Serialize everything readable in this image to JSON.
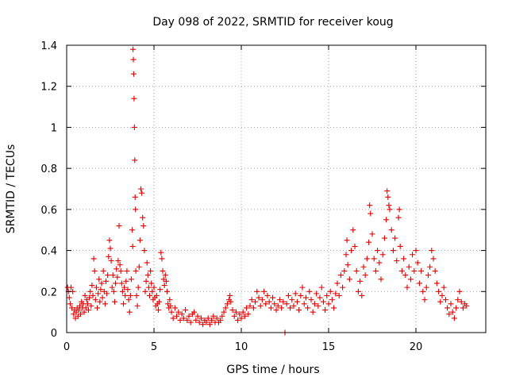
{
  "chart_data": {
    "type": "scatter",
    "title": "Day 098 of 2022, SRMTID for receiver koug",
    "xlabel": "GPS time / hours",
    "ylabel": "SRMTID / TECUs",
    "xlim": [
      0,
      24
    ],
    "ylim": [
      0,
      1.4
    ],
    "xticks": [
      0,
      5,
      10,
      15,
      20
    ],
    "xtick_labels": [
      "0",
      "5",
      "10",
      "15",
      "20"
    ],
    "yticks": [
      0,
      0.2,
      0.4,
      0.6,
      0.8,
      1,
      1.2,
      1.4
    ],
    "ytick_labels": [
      "0",
      "0.2",
      "0.4",
      "0.6",
      "0.8",
      "1",
      "1.2",
      "1.4"
    ],
    "grid": true,
    "marker": "plus",
    "series": [
      {
        "name": "SRMTID",
        "color": "#e00000",
        "points": [
          [
            0.05,
            0.22
          ],
          [
            0.1,
            0.2
          ],
          [
            0.15,
            0.17
          ],
          [
            0.2,
            0.14
          ],
          [
            0.25,
            0.22
          ],
          [
            0.3,
            0.12
          ],
          [
            0.35,
            0.2
          ],
          [
            0.4,
            0.09
          ],
          [
            0.45,
            0.11
          ],
          [
            0.5,
            0.07
          ],
          [
            0.55,
            0.1
          ],
          [
            0.6,
            0.12
          ],
          [
            0.65,
            0.08
          ],
          [
            0.7,
            0.11
          ],
          [
            0.75,
            0.13
          ],
          [
            0.8,
            0.09
          ],
          [
            0.85,
            0.15
          ],
          [
            0.9,
            0.12
          ],
          [
            0.95,
            0.14
          ],
          [
            1.0,
            0.1
          ],
          [
            1.05,
            0.18
          ],
          [
            1.1,
            0.12
          ],
          [
            1.15,
            0.16
          ],
          [
            1.2,
            0.14
          ],
          [
            1.25,
            0.11
          ],
          [
            1.3,
            0.17
          ],
          [
            1.35,
            0.2
          ],
          [
            1.4,
            0.13
          ],
          [
            1.45,
            0.23
          ],
          [
            1.5,
            0.18
          ],
          [
            1.55,
            0.36
          ],
          [
            1.6,
            0.3
          ],
          [
            1.65,
            0.16
          ],
          [
            1.7,
            0.22
          ],
          [
            1.75,
            0.12
          ],
          [
            1.8,
            0.19
          ],
          [
            1.85,
            0.26
          ],
          [
            1.9,
            0.15
          ],
          [
            1.95,
            0.21
          ],
          [
            2.0,
            0.24
          ],
          [
            2.05,
            0.17
          ],
          [
            2.1,
            0.3
          ],
          [
            2.15,
            0.2
          ],
          [
            2.2,
            0.14
          ],
          [
            2.25,
            0.25
          ],
          [
            2.3,
            0.19
          ],
          [
            2.35,
            0.28
          ],
          [
            2.4,
            0.37
          ],
          [
            2.45,
            0.45
          ],
          [
            2.5,
            0.41
          ],
          [
            2.55,
            0.35
          ],
          [
            2.6,
            0.22
          ],
          [
            2.65,
            0.28
          ],
          [
            2.7,
            0.2
          ],
          [
            2.75,
            0.15
          ],
          [
            2.8,
            0.24
          ],
          [
            2.85,
            0.31
          ],
          [
            2.9,
            0.27
          ],
          [
            2.95,
            0.35
          ],
          [
            3.0,
            0.52
          ],
          [
            3.05,
            0.33
          ],
          [
            3.1,
            0.3
          ],
          [
            3.15,
            0.24
          ],
          [
            3.2,
            0.2
          ],
          [
            3.25,
            0.14
          ],
          [
            3.3,
            0.22
          ],
          [
            3.35,
            0.18
          ],
          [
            3.4,
            0.25
          ],
          [
            3.45,
            0.3
          ],
          [
            3.5,
            0.21
          ],
          [
            3.55,
            0.16
          ],
          [
            3.6,
            0.1
          ],
          [
            3.65,
            0.18
          ],
          [
            3.7,
            0.26
          ],
          [
            3.75,
            0.5
          ],
          [
            3.78,
            0.42
          ],
          [
            3.8,
            1.38
          ],
          [
            3.82,
            1.33
          ],
          [
            3.84,
            1.26
          ],
          [
            3.86,
            1.14
          ],
          [
            3.88,
            1.0
          ],
          [
            3.9,
            0.84
          ],
          [
            3.92,
            0.66
          ],
          [
            3.94,
            0.6
          ],
          [
            3.96,
            0.3
          ],
          [
            4.0,
            0.18
          ],
          [
            4.05,
            0.13
          ],
          [
            4.1,
            0.22
          ],
          [
            4.15,
            0.32
          ],
          [
            4.2,
            0.45
          ],
          [
            4.25,
            0.7
          ],
          [
            4.3,
            0.68
          ],
          [
            4.35,
            0.56
          ],
          [
            4.4,
            0.52
          ],
          [
            4.45,
            0.4
          ],
          [
            4.5,
            0.2
          ],
          [
            4.55,
            0.25
          ],
          [
            4.6,
            0.34
          ],
          [
            4.65,
            0.28
          ],
          [
            4.7,
            0.22
          ],
          [
            4.75,
            0.18
          ],
          [
            4.8,
            0.3
          ],
          [
            4.85,
            0.24
          ],
          [
            4.9,
            0.2
          ],
          [
            4.95,
            0.16
          ],
          [
            5.0,
            0.22
          ],
          [
            5.05,
            0.17
          ],
          [
            5.1,
            0.13
          ],
          [
            5.15,
            0.18
          ],
          [
            5.2,
            0.14
          ],
          [
            5.25,
            0.11
          ],
          [
            5.3,
            0.15
          ],
          [
            5.35,
            0.21
          ],
          [
            5.4,
            0.39
          ],
          [
            5.45,
            0.36
          ],
          [
            5.5,
            0.3
          ],
          [
            5.55,
            0.26
          ],
          [
            5.6,
            0.23
          ],
          [
            5.65,
            0.28
          ],
          [
            5.7,
            0.25
          ],
          [
            5.75,
            0.2
          ],
          [
            5.8,
            0.14
          ],
          [
            5.85,
            0.12
          ],
          [
            5.9,
            0.16
          ],
          [
            5.95,
            0.13
          ],
          [
            6.0,
            0.1
          ],
          [
            6.1,
            0.07
          ],
          [
            6.2,
            0.12
          ],
          [
            6.3,
            0.08
          ],
          [
            6.4,
            0.1
          ],
          [
            6.5,
            0.06
          ],
          [
            6.6,
            0.09
          ],
          [
            6.7,
            0.07
          ],
          [
            6.8,
            0.11
          ],
          [
            6.9,
            0.06
          ],
          [
            7.0,
            0.08
          ],
          [
            7.1,
            0.05
          ],
          [
            7.2,
            0.09
          ],
          [
            7.3,
            0.1
          ],
          [
            7.4,
            0.06
          ],
          [
            7.5,
            0.08
          ],
          [
            7.6,
            0.05
          ],
          [
            7.7,
            0.07
          ],
          [
            7.8,
            0.04
          ],
          [
            7.9,
            0.06
          ],
          [
            8.0,
            0.05
          ],
          [
            8.1,
            0.07
          ],
          [
            8.2,
            0.04
          ],
          [
            8.3,
            0.06
          ],
          [
            8.4,
            0.08
          ],
          [
            8.5,
            0.05
          ],
          [
            8.6,
            0.07
          ],
          [
            8.7,
            0.05
          ],
          [
            8.8,
            0.06
          ],
          [
            8.9,
            0.08
          ],
          [
            9.0,
            0.1
          ],
          [
            9.1,
            0.12
          ],
          [
            9.2,
            0.14
          ],
          [
            9.3,
            0.16
          ],
          [
            9.35,
            0.18
          ],
          [
            9.4,
            0.15
          ],
          [
            9.5,
            0.11
          ],
          [
            9.6,
            0.08
          ],
          [
            9.7,
            0.1
          ],
          [
            9.8,
            0.06
          ],
          [
            9.9,
            0.09
          ],
          [
            10.0,
            0.07
          ],
          [
            10.1,
            0.1
          ],
          [
            10.2,
            0.08
          ],
          [
            10.3,
            0.12
          ],
          [
            10.4,
            0.09
          ],
          [
            10.5,
            0.13
          ],
          [
            10.6,
            0.16
          ],
          [
            10.7,
            0.12
          ],
          [
            10.8,
            0.15
          ],
          [
            10.9,
            0.2
          ],
          [
            11.0,
            0.17
          ],
          [
            11.1,
            0.13
          ],
          [
            11.2,
            0.16
          ],
          [
            11.3,
            0.2
          ],
          [
            11.4,
            0.14
          ],
          [
            11.5,
            0.18
          ],
          [
            11.6,
            0.15
          ],
          [
            11.7,
            0.12
          ],
          [
            11.8,
            0.17
          ],
          [
            11.9,
            0.14
          ],
          [
            12.0,
            0.11
          ],
          [
            12.1,
            0.13
          ],
          [
            12.2,
            0.16
          ],
          [
            12.3,
            0.12
          ],
          [
            12.4,
            0.15
          ],
          [
            12.5,
            0.0
          ],
          [
            12.6,
            0.14
          ],
          [
            12.7,
            0.18
          ],
          [
            12.8,
            0.12
          ],
          [
            12.9,
            0.16
          ],
          [
            13.0,
            0.13
          ],
          [
            13.1,
            0.19
          ],
          [
            13.2,
            0.15
          ],
          [
            13.3,
            0.11
          ],
          [
            13.4,
            0.18
          ],
          [
            13.5,
            0.22
          ],
          [
            13.6,
            0.14
          ],
          [
            13.7,
            0.17
          ],
          [
            13.8,
            0.12
          ],
          [
            13.9,
            0.2
          ],
          [
            14.0,
            0.16
          ],
          [
            14.1,
            0.1
          ],
          [
            14.2,
            0.14
          ],
          [
            14.3,
            0.19
          ],
          [
            14.4,
            0.13
          ],
          [
            14.5,
            0.17
          ],
          [
            14.6,
            0.22
          ],
          [
            14.7,
            0.15
          ],
          [
            14.8,
            0.11
          ],
          [
            14.9,
            0.18
          ],
          [
            15.0,
            0.14
          ],
          [
            15.1,
            0.2
          ],
          [
            15.2,
            0.16
          ],
          [
            15.3,
            0.12
          ],
          [
            15.4,
            0.19
          ],
          [
            15.5,
            0.24
          ],
          [
            15.6,
            0.18
          ],
          [
            15.7,
            0.28
          ],
          [
            15.8,
            0.22
          ],
          [
            15.9,
            0.3
          ],
          [
            16.0,
            0.38
          ],
          [
            16.05,
            0.45
          ],
          [
            16.1,
            0.33
          ],
          [
            16.2,
            0.26
          ],
          [
            16.3,
            0.4
          ],
          [
            16.4,
            0.5
          ],
          [
            16.5,
            0.42
          ],
          [
            16.6,
            0.3
          ],
          [
            16.7,
            0.2
          ],
          [
            16.8,
            0.25
          ],
          [
            16.9,
            0.18
          ],
          [
            17.0,
            0.32
          ],
          [
            17.1,
            0.28
          ],
          [
            17.2,
            0.36
          ],
          [
            17.3,
            0.44
          ],
          [
            17.35,
            0.62
          ],
          [
            17.4,
            0.58
          ],
          [
            17.5,
            0.48
          ],
          [
            17.6,
            0.36
          ],
          [
            17.7,
            0.3
          ],
          [
            17.8,
            0.4
          ],
          [
            17.9,
            0.34
          ],
          [
            18.0,
            0.26
          ],
          [
            18.1,
            0.38
          ],
          [
            18.2,
            0.46
          ],
          [
            18.3,
            0.55
          ],
          [
            18.35,
            0.69
          ],
          [
            18.4,
            0.66
          ],
          [
            18.45,
            0.62
          ],
          [
            18.5,
            0.6
          ],
          [
            18.6,
            0.5
          ],
          [
            18.7,
            0.4
          ],
          [
            18.8,
            0.46
          ],
          [
            18.9,
            0.35
          ],
          [
            19.0,
            0.56
          ],
          [
            19.05,
            0.6
          ],
          [
            19.1,
            0.42
          ],
          [
            19.2,
            0.3
          ],
          [
            19.3,
            0.36
          ],
          [
            19.4,
            0.28
          ],
          [
            19.5,
            0.22
          ],
          [
            19.6,
            0.32
          ],
          [
            19.7,
            0.26
          ],
          [
            19.8,
            0.38
          ],
          [
            19.9,
            0.3
          ],
          [
            20.0,
            0.4
          ],
          [
            20.1,
            0.34
          ],
          [
            20.2,
            0.24
          ],
          [
            20.3,
            0.3
          ],
          [
            20.4,
            0.2
          ],
          [
            20.5,
            0.16
          ],
          [
            20.6,
            0.22
          ],
          [
            20.7,
            0.28
          ],
          [
            20.8,
            0.32
          ],
          [
            20.9,
            0.4
          ],
          [
            21.0,
            0.36
          ],
          [
            21.1,
            0.3
          ],
          [
            21.2,
            0.24
          ],
          [
            21.3,
            0.2
          ],
          [
            21.4,
            0.15
          ],
          [
            21.5,
            0.18
          ],
          [
            21.6,
            0.22
          ],
          [
            21.7,
            0.16
          ],
          [
            21.8,
            0.12
          ],
          [
            21.9,
            0.09
          ],
          [
            22.0,
            0.14
          ],
          [
            22.1,
            0.1
          ],
          [
            22.2,
            0.07
          ],
          [
            22.3,
            0.12
          ],
          [
            22.4,
            0.16
          ],
          [
            22.5,
            0.2
          ],
          [
            22.6,
            0.15
          ],
          [
            22.7,
            0.12
          ],
          [
            22.8,
            0.14
          ],
          [
            22.9,
            0.13
          ]
        ]
      }
    ]
  }
}
